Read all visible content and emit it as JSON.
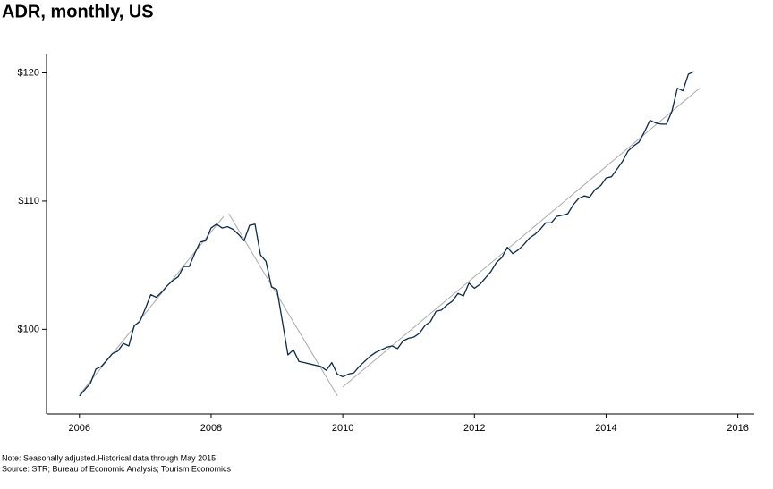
{
  "chart_data": {
    "type": "line",
    "title": "ADR, monthly, US",
    "notes": [
      "Note: Seasonally adjusted.Historical data through May 2015.",
      "Source: STR; Bureau of Economic Analysis; Tourism Economics"
    ],
    "x": [
      2006,
      2006.083,
      2006.167,
      2006.25,
      2006.333,
      2006.417,
      2006.5,
      2006.583,
      2006.667,
      2006.75,
      2006.833,
      2006.917,
      2007,
      2007.083,
      2007.167,
      2007.25,
      2007.333,
      2007.417,
      2007.5,
      2007.583,
      2007.667,
      2007.75,
      2007.833,
      2007.917,
      2008,
      2008.083,
      2008.167,
      2008.25,
      2008.333,
      2008.417,
      2008.5,
      2008.583,
      2008.667,
      2008.75,
      2008.833,
      2008.917,
      2009,
      2009.083,
      2009.167,
      2009.25,
      2009.333,
      2009.417,
      2009.5,
      2009.583,
      2009.667,
      2009.75,
      2009.833,
      2009.917,
      2010,
      2010.083,
      2010.167,
      2010.25,
      2010.333,
      2010.417,
      2010.5,
      2010.583,
      2010.667,
      2010.75,
      2010.833,
      2010.917,
      2011,
      2011.083,
      2011.167,
      2011.25,
      2011.333,
      2011.417,
      2011.5,
      2011.583,
      2011.667,
      2011.75,
      2011.833,
      2011.917,
      2012,
      2012.083,
      2012.167,
      2012.25,
      2012.333,
      2012.417,
      2012.5,
      2012.583,
      2012.667,
      2012.75,
      2012.833,
      2012.917,
      2013,
      2013.083,
      2013.167,
      2013.25,
      2013.333,
      2013.417,
      2013.5,
      2013.583,
      2013.667,
      2013.75,
      2013.833,
      2013.917,
      2014,
      2014.083,
      2014.167,
      2014.25,
      2014.333,
      2014.417,
      2014.5,
      2014.583,
      2014.667,
      2014.75,
      2014.833,
      2014.917,
      2015,
      2015.083,
      2015.167,
      2015.25,
      2015.333
    ],
    "series": [
      {
        "color": "#0b2a4a",
        "values": [
          94.8,
          95.3,
          95.8,
          96.9,
          97.1,
          97.6,
          98.1,
          98.3,
          98.9,
          98.7,
          100.3,
          100.6,
          101.6,
          102.7,
          102.5,
          102.9,
          103.4,
          103.8,
          104.1,
          104.9,
          104.9,
          105.9,
          106.8,
          106.9,
          107.9,
          108.2,
          107.9,
          108.0,
          107.8,
          107.4,
          106.9,
          108.1,
          108.2,
          105.8,
          105.3,
          103.3,
          103.1,
          100.6,
          98.0,
          98.4,
          97.5,
          97.4,
          97.3,
          97.2,
          97.1,
          96.8,
          97.4,
          96.5,
          96.3,
          96.5,
          96.6,
          97.1,
          97.5,
          97.9,
          98.2,
          98.4,
          98.6,
          98.7,
          98.5,
          99.1,
          99.3,
          99.4,
          99.7,
          100.3,
          100.6,
          101.4,
          101.5,
          101.9,
          102.2,
          102.8,
          102.6,
          103.6,
          103.2,
          103.5,
          104.0,
          104.5,
          105.2,
          105.6,
          106.4,
          105.9,
          106.2,
          106.6,
          107.1,
          107.4,
          107.8,
          108.3,
          108.3,
          108.8,
          108.9,
          109.0,
          109.7,
          110.2,
          110.4,
          110.3,
          110.9,
          111.2,
          111.8,
          111.9,
          112.5,
          113.1,
          113.9,
          114.3,
          114.6,
          115.4,
          116.3,
          116.1,
          116.0,
          116.0,
          117.0,
          118.8,
          118.6,
          119.9,
          120.1
        ]
      }
    ],
    "trend_lines": [
      {
        "color": "#aaaaaa",
        "x": [
          2006,
          2008.19
        ],
        "values": [
          94.9,
          108.8
        ]
      },
      {
        "color": "#aaaaaa",
        "x": [
          2008.27,
          2009.92
        ],
        "values": [
          109.0,
          94.8
        ]
      },
      {
        "color": "#aaaaaa",
        "x": [
          2010,
          2015.42
        ],
        "values": [
          95.5,
          118.8
        ]
      }
    ],
    "xlim": [
      2005.5,
      2016.25
    ],
    "xticks": [
      2006,
      2008,
      2010,
      2012,
      2014,
      2016
    ],
    "ylim": [
      93.4,
      121.5
    ],
    "yticks": [
      {
        "value": 100,
        "label": "$100"
      },
      {
        "value": 110,
        "label": "$110"
      },
      {
        "value": 120,
        "label": "$120"
      }
    ],
    "grid": false
  }
}
